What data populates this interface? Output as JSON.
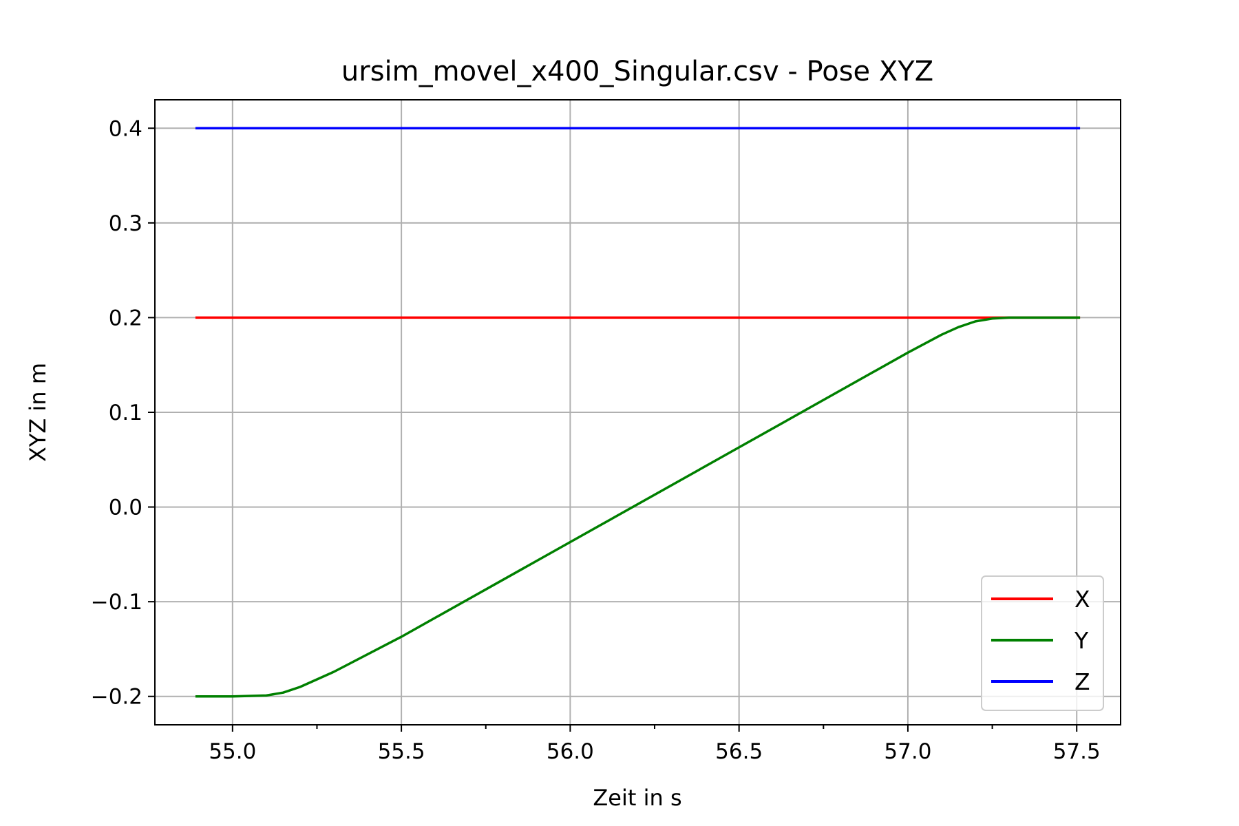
{
  "chart_data": {
    "type": "line",
    "title": "ursim_movel_x400_Singular.csv - Pose XYZ",
    "xlabel": "Zeit in s",
    "ylabel": "XYZ in m",
    "xlim": [
      54.77,
      57.63
    ],
    "ylim": [
      -0.23,
      0.43
    ],
    "xticks": [
      55.0,
      55.5,
      56.0,
      56.5,
      57.0,
      57.5
    ],
    "xtick_labels": [
      "55.0",
      "55.5",
      "56.0",
      "56.5",
      "57.0",
      "57.5"
    ],
    "xminor_ticks": [
      55.25,
      55.75,
      56.25,
      56.75,
      57.25
    ],
    "yticks": [
      -0.2,
      -0.1,
      0.0,
      0.1,
      0.2,
      0.3,
      0.4
    ],
    "ytick_labels": [
      "−0.2",
      "−0.1",
      "0.0",
      "0.1",
      "0.2",
      "0.3",
      "0.4"
    ],
    "grid": true,
    "legend_position": "bottom-right",
    "series": [
      {
        "name": "X",
        "color": "#ff0000",
        "x": [
          54.89,
          57.51
        ],
        "y": [
          0.2,
          0.2
        ]
      },
      {
        "name": "Y",
        "color": "#008000",
        "x": [
          54.89,
          55.0,
          55.1,
          55.15,
          55.2,
          55.25,
          55.3,
          55.5,
          56.0,
          56.5,
          57.0,
          57.1,
          57.15,
          57.2,
          57.25,
          57.3,
          57.4,
          57.51
        ],
        "y": [
          -0.2,
          -0.2,
          -0.199,
          -0.196,
          -0.19,
          -0.182,
          -0.174,
          -0.137,
          -0.037,
          0.063,
          0.163,
          0.182,
          0.19,
          0.196,
          0.199,
          0.2,
          0.2,
          0.2
        ]
      },
      {
        "name": "Z",
        "color": "#0000ff",
        "x": [
          54.89,
          57.51
        ],
        "y": [
          0.4,
          0.4
        ]
      }
    ]
  }
}
